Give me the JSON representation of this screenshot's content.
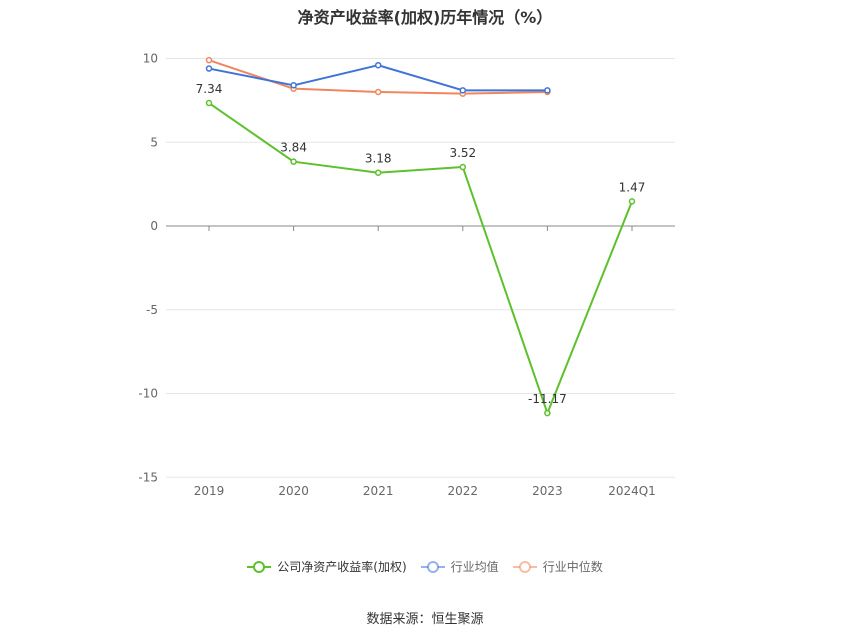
{
  "chart_data": {
    "type": "line",
    "title": "净资产收益率(加权)历年情况（%）",
    "categories": [
      "2019",
      "2020",
      "2021",
      "2022",
      "2023",
      "2024Q1"
    ],
    "yticks": [
      "10",
      "5",
      "0",
      "-5",
      "-10",
      "-15"
    ],
    "ylim": [
      -15,
      10
    ],
    "grid": true,
    "legend_position": "bottom",
    "series": [
      {
        "name": "公司净资产收益率(加权)",
        "color": "#5dc02d",
        "values": [
          7.34,
          3.84,
          3.18,
          3.52,
          -11.17,
          1.47
        ],
        "labels": [
          "7.34",
          "3.84",
          "3.18",
          "3.52",
          "-11.17",
          "1.47"
        ]
      },
      {
        "name": "行业均值",
        "color": "#3f73d6",
        "values": [
          9.4,
          8.4,
          9.6,
          8.1,
          8.1,
          null
        ]
      },
      {
        "name": "行业中位数",
        "color": "#f0865f",
        "values": [
          9.9,
          8.2,
          8.0,
          7.9,
          8.0,
          null
        ]
      }
    ]
  },
  "source": "数据来源：恒生聚源"
}
